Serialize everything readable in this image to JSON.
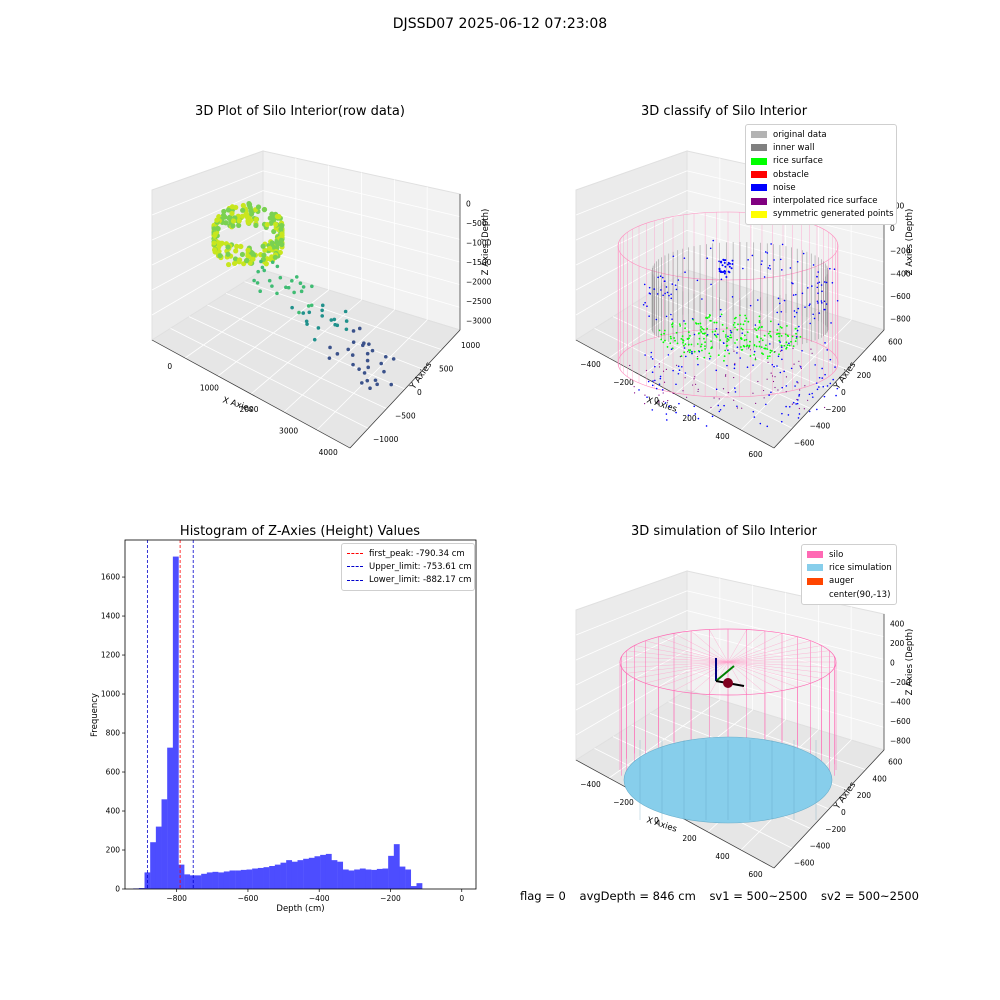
{
  "suptitle": "DJSSD07 2025-06-12 07:23:08",
  "panels": {
    "raw": {
      "title": "3D Plot of Silo Interior(row data)",
      "xlabel": "X Axies",
      "ylabel": "Y Axies",
      "zlabel": "Z Axies (Depth)",
      "xticks": [
        "0",
        "1000",
        "2000",
        "3000",
        "4000"
      ],
      "yticks": [
        "1000",
        "500",
        "0",
        "−500",
        "−1000"
      ],
      "zticks": [
        "0",
        "−500",
        "−1000",
        "−1500",
        "−2000",
        "−2500",
        "−3000"
      ]
    },
    "classify": {
      "title": "3D classify of Silo Interior",
      "xlabel": "X Axies",
      "ylabel": "Y Axies",
      "zlabel": "Z Axies (Depth)",
      "xticks": [
        "−400",
        "−200",
        "0",
        "200",
        "400",
        "600"
      ],
      "yticks": [
        "600",
        "400",
        "200",
        "0",
        "−200",
        "−400",
        "−600"
      ],
      "zticks": [
        "200",
        "0",
        "−200",
        "−400",
        "−600",
        "−800"
      ],
      "legend": [
        {
          "label": "original data",
          "color": "#b3b3b3"
        },
        {
          "label": "inner wall",
          "color": "#808080"
        },
        {
          "label": "rice surface",
          "color": "#00ff00"
        },
        {
          "label": "obstacle",
          "color": "#ff0000"
        },
        {
          "label": "noise",
          "color": "#0000ff"
        },
        {
          "label": "interpolated rice surface",
          "color": "#800080"
        },
        {
          "label": "symmetric generated points",
          "color": "#ffff00"
        }
      ]
    },
    "simulation": {
      "title": "3D simulation of Silo Interior",
      "xlabel": "X Axies",
      "ylabel": "Y Axies",
      "zlabel": "Z Axies (Depth)",
      "xticks": [
        "−400",
        "−200",
        "0",
        "200",
        "400",
        "600"
      ],
      "yticks": [
        "600",
        "400",
        "200",
        "0",
        "−200",
        "−400",
        "−600"
      ],
      "zticks": [
        "400",
        "200",
        "0",
        "−200",
        "−400",
        "−600",
        "−800"
      ],
      "legend": [
        {
          "label": "silo",
          "color": "#ff69b4"
        },
        {
          "label": "rice simulation",
          "color": "#87ceeb"
        },
        {
          "label": "auger",
          "color": "#ff4500"
        },
        {
          "label": "center(90,-13)",
          "color": ""
        }
      ]
    }
  },
  "chart_data": {
    "type": "bar",
    "title": "Histogram of Z-Axies (Height) Values",
    "xlabel": "Depth (cm)",
    "ylabel": "Frequency",
    "xlim": [
      -945,
      40
    ],
    "ylim": [
      0,
      1790
    ],
    "xticks": [
      -800,
      -600,
      -400,
      -200,
      0
    ],
    "yticks": [
      0,
      200,
      400,
      600,
      800,
      1000,
      1200,
      1400,
      1600
    ],
    "bin_width": 15.9,
    "bin_start": -922,
    "bar_color": "#4d4dff",
    "values": [
      3,
      5,
      85,
      240,
      320,
      460,
      725,
      1705,
      125,
      75,
      70,
      70,
      78,
      85,
      88,
      85,
      90,
      95,
      95,
      98,
      100,
      105,
      108,
      112,
      118,
      125,
      135,
      148,
      140,
      148,
      155,
      160,
      168,
      175,
      180,
      148,
      140,
      100,
      95,
      100,
      105,
      100,
      98,
      103,
      105,
      170,
      230,
      115,
      100,
      15,
      30
    ],
    "lines": [
      {
        "label": "first_peak: -790.34 cm",
        "x": -790.34,
        "color": "#ff0000"
      },
      {
        "label": "Upper_limit: -753.61 cm",
        "x": -753.61,
        "color": "#0000cc"
      },
      {
        "label": "Lower_limit: -882.17 cm",
        "x": -882.17,
        "color": "#0000cc"
      }
    ],
    "legend_position": "upper right"
  },
  "footer": {
    "flag": "flag = 0",
    "avg": "avgDepth = 846 cm",
    "sv1": "sv1 = 500~2500",
    "sv2": "sv2 = 500~2500"
  }
}
